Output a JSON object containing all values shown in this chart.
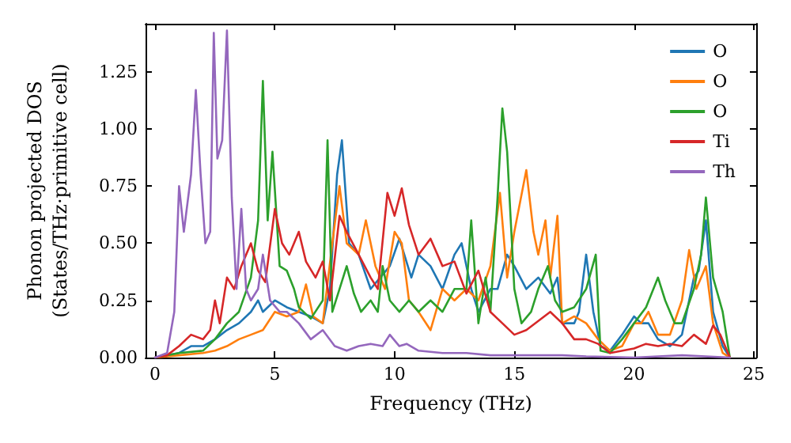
{
  "chart_data": {
    "type": "line",
    "xlabel": "Frequency (THz)",
    "ylabel": "Phonon projected DOS\n(States/THz·primitive cell)",
    "xlim": [
      -0.4,
      25.1
    ],
    "ylim": [
      0,
      1.46
    ],
    "xticks": [
      0,
      5,
      10,
      15,
      20,
      25
    ],
    "yticks": [
      {
        "value": 0,
        "label": "0.00"
      },
      {
        "value": 0.25,
        "label": "0.25"
      },
      {
        "value": 0.5,
        "label": "0.50"
      },
      {
        "value": 0.75,
        "label": "0.75"
      },
      {
        "value": 1,
        "label": "1.00"
      },
      {
        "value": 1.25,
        "label": "1.25"
      }
    ],
    "grid": false,
    "legend": "top right",
    "marker": "none",
    "line_style": "solid",
    "series": [
      {
        "name": "O",
        "color": "#1f77b4",
        "x": [
          0,
          1,
          1.5,
          2,
          2.5,
          3,
          3.5,
          4,
          4.3,
          4.5,
          5,
          5.5,
          6,
          6.5,
          7,
          7.3,
          7.6,
          7.8,
          8.1,
          8.5,
          9,
          9.4,
          9.8,
          10.2,
          10.7,
          11,
          11.5,
          12,
          12.5,
          12.8,
          13.2,
          13.5,
          14,
          14.3,
          14.7,
          15,
          15.5,
          16,
          16.5,
          16.8,
          17,
          17.5,
          17.7,
          18,
          18.3,
          18.6,
          19,
          19.5,
          20,
          20.3,
          20.6,
          21,
          21.5,
          22,
          22.5,
          22.7,
          23,
          23.3,
          23.7,
          24
        ],
        "values": [
          0,
          0.02,
          0.05,
          0.05,
          0.08,
          0.12,
          0.15,
          0.2,
          0.25,
          0.2,
          0.25,
          0.22,
          0.2,
          0.18,
          0.15,
          0.3,
          0.8,
          0.95,
          0.5,
          0.45,
          0.3,
          0.35,
          0.4,
          0.52,
          0.35,
          0.45,
          0.4,
          0.3,
          0.45,
          0.5,
          0.3,
          0.2,
          0.3,
          0.3,
          0.45,
          0.4,
          0.3,
          0.35,
          0.28,
          0.35,
          0.15,
          0.15,
          0.2,
          0.45,
          0.2,
          0.05,
          0.03,
          0.1,
          0.18,
          0.15,
          0.15,
          0.08,
          0.05,
          0.1,
          0.35,
          0.38,
          0.6,
          0.2,
          0.05,
          0
        ]
      },
      {
        "name": "O",
        "color": "#ff7f0e",
        "x": [
          0,
          1,
          2,
          2.5,
          3,
          3.5,
          4,
          4.5,
          5,
          5.5,
          6,
          6.3,
          6.6,
          7,
          7.4,
          7.7,
          8,
          8.5,
          8.8,
          9.2,
          9.6,
          10,
          10.3,
          10.6,
          11,
          11.5,
          12,
          12.5,
          13,
          13.5,
          14,
          14.4,
          14.7,
          15,
          15.5,
          15.8,
          16,
          16.3,
          16.5,
          16.8,
          17,
          17.5,
          18,
          18.5,
          19,
          19.5,
          20,
          20.3,
          20.6,
          21,
          21.5,
          22,
          22.3,
          22.6,
          23,
          23.3,
          23.7,
          24
        ],
        "values": [
          0,
          0.01,
          0.02,
          0.03,
          0.05,
          0.08,
          0.1,
          0.12,
          0.2,
          0.18,
          0.2,
          0.32,
          0.18,
          0.15,
          0.5,
          0.75,
          0.5,
          0.45,
          0.6,
          0.4,
          0.3,
          0.55,
          0.5,
          0.25,
          0.2,
          0.12,
          0.3,
          0.25,
          0.3,
          0.25,
          0.4,
          0.72,
          0.35,
          0.55,
          0.82,
          0.55,
          0.45,
          0.6,
          0.35,
          0.62,
          0.15,
          0.18,
          0.15,
          0.08,
          0.03,
          0.05,
          0.15,
          0.15,
          0.2,
          0.1,
          0.1,
          0.25,
          0.47,
          0.3,
          0.4,
          0.15,
          0.02,
          0
        ]
      },
      {
        "name": "O",
        "color": "#2ca02c",
        "x": [
          0,
          1,
          2,
          2.5,
          3,
          3.5,
          4,
          4.3,
          4.5,
          4.7,
          4.9,
          5.2,
          5.5,
          5.8,
          6,
          6.5,
          7,
          7.2,
          7.4,
          7.7,
          8,
          8.3,
          8.6,
          9,
          9.3,
          9.5,
          9.8,
          10.2,
          10.6,
          11,
          11.5,
          12,
          12.5,
          13,
          13.2,
          13.5,
          13.8,
          14,
          14.3,
          14.5,
          14.7,
          15,
          15.3,
          15.7,
          16,
          16.4,
          16.7,
          17,
          17.5,
          18,
          18.4,
          18.6,
          19,
          19.5,
          20,
          20.5,
          21,
          21.3,
          21.7,
          22,
          22.5,
          22.8,
          23,
          23.3,
          23.7,
          24
        ],
        "values": [
          0,
          0.02,
          0.03,
          0.08,
          0.15,
          0.2,
          0.35,
          0.6,
          1.21,
          0.6,
          0.9,
          0.4,
          0.38,
          0.3,
          0.22,
          0.17,
          0.25,
          0.95,
          0.2,
          0.3,
          0.4,
          0.28,
          0.2,
          0.25,
          0.2,
          0.4,
          0.25,
          0.2,
          0.25,
          0.2,
          0.25,
          0.2,
          0.3,
          0.3,
          0.6,
          0.15,
          0.35,
          0.2,
          0.7,
          1.09,
          0.9,
          0.3,
          0.15,
          0.2,
          0.3,
          0.4,
          0.25,
          0.2,
          0.22,
          0.3,
          0.45,
          0.03,
          0.02,
          0.08,
          0.15,
          0.22,
          0.35,
          0.25,
          0.15,
          0.15,
          0.3,
          0.45,
          0.7,
          0.35,
          0.2,
          0
        ]
      },
      {
        "name": "Ti",
        "color": "#d62728",
        "x": [
          0,
          0.5,
          1,
          1.5,
          2,
          2.3,
          2.5,
          2.7,
          3,
          3.3,
          3.6,
          4,
          4.3,
          4.6,
          5,
          5.3,
          5.6,
          6,
          6.3,
          6.7,
          7,
          7.3,
          7.7,
          8,
          8.5,
          9,
          9.3,
          9.7,
          10,
          10.3,
          10.6,
          11,
          11.5,
          12,
          12.5,
          13,
          13.5,
          14,
          14.5,
          15,
          15.5,
          16,
          16.5,
          17,
          17.5,
          18,
          18.5,
          19,
          20,
          20.5,
          21,
          21.5,
          22,
          22.5,
          23,
          23.3,
          23.6,
          24
        ],
        "values": [
          0,
          0.01,
          0.05,
          0.1,
          0.08,
          0.12,
          0.25,
          0.15,
          0.35,
          0.3,
          0.4,
          0.5,
          0.38,
          0.33,
          0.65,
          0.5,
          0.45,
          0.55,
          0.42,
          0.35,
          0.42,
          0.25,
          0.62,
          0.55,
          0.45,
          0.35,
          0.3,
          0.72,
          0.62,
          0.74,
          0.58,
          0.45,
          0.52,
          0.4,
          0.42,
          0.28,
          0.38,
          0.2,
          0.15,
          0.1,
          0.12,
          0.16,
          0.2,
          0.15,
          0.08,
          0.08,
          0.06,
          0.02,
          0.04,
          0.06,
          0.05,
          0.06,
          0.05,
          0.1,
          0.06,
          0.14,
          0.1,
          0
        ]
      },
      {
        "name": "Th",
        "color": "#9467bd",
        "x": [
          0,
          0.5,
          0.8,
          1,
          1.2,
          1.5,
          1.7,
          1.9,
          2.1,
          2.3,
          2.45,
          2.6,
          2.8,
          3,
          3.2,
          3.4,
          3.6,
          3.8,
          4,
          4.3,
          4.5,
          4.8,
          5.2,
          5.5,
          6,
          6.5,
          7,
          7.5,
          8,
          8.5,
          9,
          9.5,
          9.8,
          10.2,
          10.5,
          11,
          12,
          13,
          14,
          15,
          17,
          18,
          20,
          22,
          24
        ],
        "values": [
          0,
          0.02,
          0.2,
          0.75,
          0.55,
          0.8,
          1.17,
          0.8,
          0.5,
          0.55,
          1.42,
          0.87,
          0.95,
          1.43,
          0.7,
          0.3,
          0.65,
          0.3,
          0.25,
          0.3,
          0.45,
          0.25,
          0.2,
          0.2,
          0.15,
          0.08,
          0.12,
          0.05,
          0.03,
          0.05,
          0.06,
          0.05,
          0.1,
          0.05,
          0.06,
          0.03,
          0.02,
          0.02,
          0.01,
          0.01,
          0.01,
          0.005,
          0,
          0.01,
          0
        ]
      }
    ]
  }
}
